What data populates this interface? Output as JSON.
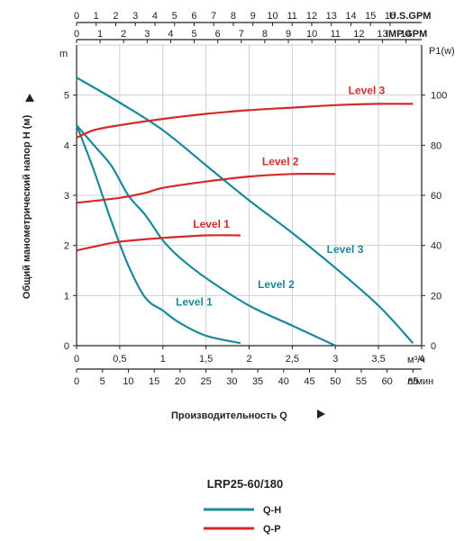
{
  "chart_data": {
    "type": "line",
    "model": "LRP25-60/180",
    "colors": {
      "qh": "#1a8a9a",
      "qp": "#d42a2a",
      "grid": "#cfcfcf",
      "axis": "#222222"
    },
    "x_primary": {
      "unit": "м³/ч",
      "range": [
        0,
        4
      ],
      "ticks": [
        "0",
        "0,5",
        "1",
        "1,5",
        "2",
        "2,5",
        "3",
        "3,5",
        "4"
      ],
      "tick_values": [
        0,
        0.5,
        1,
        1.5,
        2,
        2.5,
        3,
        3.5,
        4
      ]
    },
    "x_lmin": {
      "unit": "л/мин",
      "ticks": [
        "0",
        "5",
        "10",
        "15",
        "20",
        "25",
        "30",
        "35",
        "40",
        "45",
        "50",
        "55",
        "60",
        "65"
      ],
      "tick_values": [
        0,
        5,
        10,
        15,
        20,
        25,
        30,
        35,
        40,
        45,
        50,
        55,
        60,
        65
      ]
    },
    "x_usgpm": {
      "unit": "U.S.GPM",
      "ticks": [
        "0",
        "1",
        "2",
        "3",
        "4",
        "5",
        "6",
        "7",
        "8",
        "9",
        "10",
        "11",
        "12",
        "13",
        "14",
        "15",
        "16"
      ],
      "tick_values": [
        0,
        1,
        2,
        3,
        4,
        5,
        6,
        7,
        8,
        9,
        10,
        11,
        12,
        13,
        14,
        15,
        16
      ]
    },
    "x_impgpm": {
      "unit": "IMP.GPM",
      "ticks": [
        "0",
        "1",
        "2",
        "3",
        "4",
        "5",
        "6",
        "7",
        "8",
        "9",
        "10",
        "11",
        "12",
        "13",
        "14"
      ],
      "tick_values": [
        0,
        1,
        2,
        3,
        4,
        5,
        6,
        7,
        8,
        9,
        10,
        11,
        12,
        13,
        14
      ]
    },
    "y_left": {
      "unit": "m",
      "range": [
        0,
        6
      ],
      "ticks": [
        "0",
        "1",
        "2",
        "3",
        "4",
        "5"
      ],
      "tick_values": [
        0,
        1,
        2,
        3,
        4,
        5
      ]
    },
    "y_right": {
      "unit": "P1(w)",
      "range": [
        0,
        120
      ],
      "ticks": [
        "0",
        "20",
        "40",
        "60",
        "80",
        "100"
      ],
      "tick_values": [
        0,
        20,
        40,
        60,
        80,
        100
      ]
    },
    "ylabel": "Общий манометрический напор H (м)",
    "xlabel": "Производительность Q",
    "qh_series": [
      {
        "name": "Level 1",
        "points": [
          [
            0,
            4.4
          ],
          [
            0.2,
            3.5
          ],
          [
            0.4,
            2.5
          ],
          [
            0.6,
            1.6
          ],
          [
            0.8,
            0.95
          ],
          [
            1.0,
            0.7
          ],
          [
            1.2,
            0.45
          ],
          [
            1.5,
            0.2
          ],
          [
            1.9,
            0.05
          ]
        ]
      },
      {
        "name": "Level 2",
        "points": [
          [
            0,
            4.4
          ],
          [
            0.2,
            4.0
          ],
          [
            0.4,
            3.6
          ],
          [
            0.6,
            3.0
          ],
          [
            0.8,
            2.6
          ],
          [
            1.0,
            2.1
          ],
          [
            1.2,
            1.75
          ],
          [
            1.5,
            1.35
          ],
          [
            2.0,
            0.8
          ],
          [
            2.5,
            0.4
          ],
          [
            3.0,
            0.0
          ]
        ]
      },
      {
        "name": "Level 3",
        "points": [
          [
            0,
            5.35
          ],
          [
            0.5,
            4.85
          ],
          [
            1.0,
            4.3
          ],
          [
            1.5,
            3.6
          ],
          [
            2.0,
            2.9
          ],
          [
            2.5,
            2.25
          ],
          [
            3.0,
            1.55
          ],
          [
            3.5,
            0.8
          ],
          [
            3.9,
            0.05
          ]
        ]
      }
    ],
    "qp_series": [
      {
        "name": "Level 1",
        "points": [
          [
            0,
            38
          ],
          [
            0.2,
            39.5
          ],
          [
            0.5,
            41.5
          ],
          [
            1.0,
            43
          ],
          [
            1.5,
            44
          ],
          [
            1.9,
            44
          ]
        ]
      },
      {
        "name": "Level 2",
        "points": [
          [
            0,
            57
          ],
          [
            0.5,
            59
          ],
          [
            0.8,
            61
          ],
          [
            1.0,
            63
          ],
          [
            1.5,
            65.5
          ],
          [
            2.0,
            67.5
          ],
          [
            2.5,
            68.5
          ],
          [
            3.0,
            68.5
          ]
        ]
      },
      {
        "name": "Level 3",
        "points": [
          [
            0,
            83
          ],
          [
            0.2,
            86
          ],
          [
            0.5,
            88
          ],
          [
            1.0,
            90.5
          ],
          [
            1.5,
            92.5
          ],
          [
            2.0,
            94
          ],
          [
            2.5,
            95
          ],
          [
            3.0,
            96
          ],
          [
            3.5,
            96.5
          ],
          [
            3.9,
            96.5
          ]
        ]
      }
    ],
    "legend": [
      {
        "label": "Q-H",
        "color_key": "qh"
      },
      {
        "label": "Q-P",
        "color_key": "qp"
      }
    ]
  }
}
